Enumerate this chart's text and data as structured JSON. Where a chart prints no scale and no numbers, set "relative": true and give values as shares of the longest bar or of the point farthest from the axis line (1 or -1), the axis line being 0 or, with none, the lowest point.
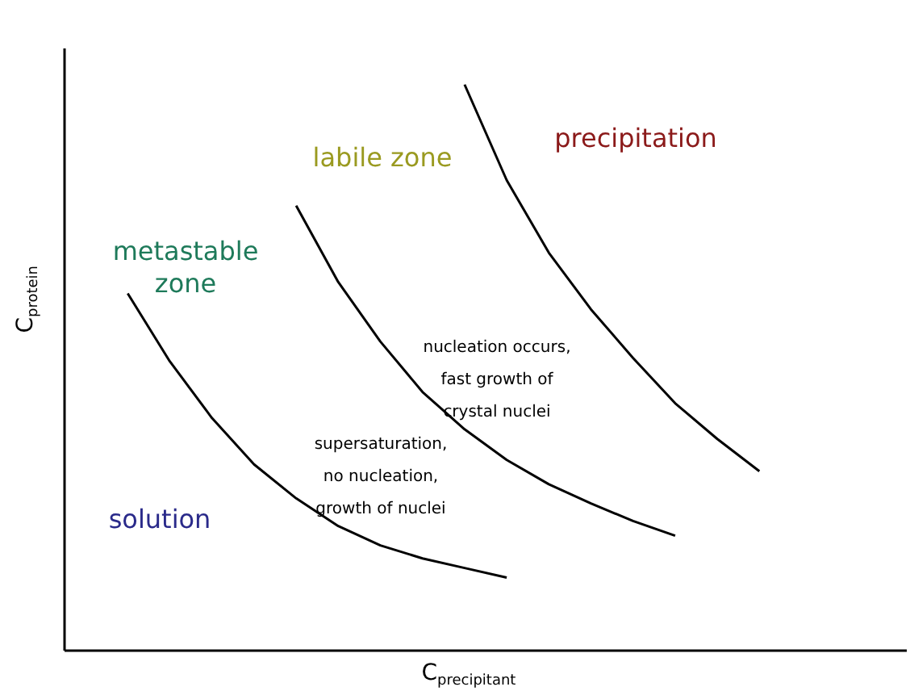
{
  "chart_data": {
    "type": "line",
    "relative": true,
    "xlabel": "C$_{precipitant}$",
    "ylabel": "C$_{protein}$",
    "categories": [
      null,
      null,
      null,
      null,
      null,
      null,
      null,
      null,
      null,
      null,
      null,
      null,
      null,
      null,
      null,
      null,
      null,
      null,
      null,
      null
    ],
    "series": [
      {
        "color": "#000000",
        "values": [
          null,
          0.631,
          0.511,
          0.411,
          0.329,
          0.269,
          0.22,
          0.186,
          0.163,
          0.146,
          0.129,
          null,
          null,
          null,
          null,
          null,
          null,
          null,
          null,
          null
        ]
      },
      {
        "color": "#000000",
        "values": [
          null,
          null,
          null,
          null,
          null,
          0.786,
          0.651,
          0.546,
          0.457,
          0.391,
          0.337,
          0.294,
          0.26,
          0.229,
          0.203,
          null,
          null,
          null,
          null,
          null
        ]
      },
      {
        "color": "#000000",
        "values": [
          null,
          null,
          null,
          null,
          null,
          null,
          null,
          null,
          null,
          1.0,
          0.831,
          0.703,
          0.603,
          0.517,
          0.437,
          0.374,
          0.317,
          null,
          null,
          null
        ]
      }
    ],
    "annotations": [
      "precipitation",
      "labile zone",
      "metastable\nzone",
      "nucleation occurs,\nfast growth of\ncrystal nuclei",
      "supersaturation,\nno nucleation,\ngrowth of nuclei",
      "solution"
    ]
  }
}
